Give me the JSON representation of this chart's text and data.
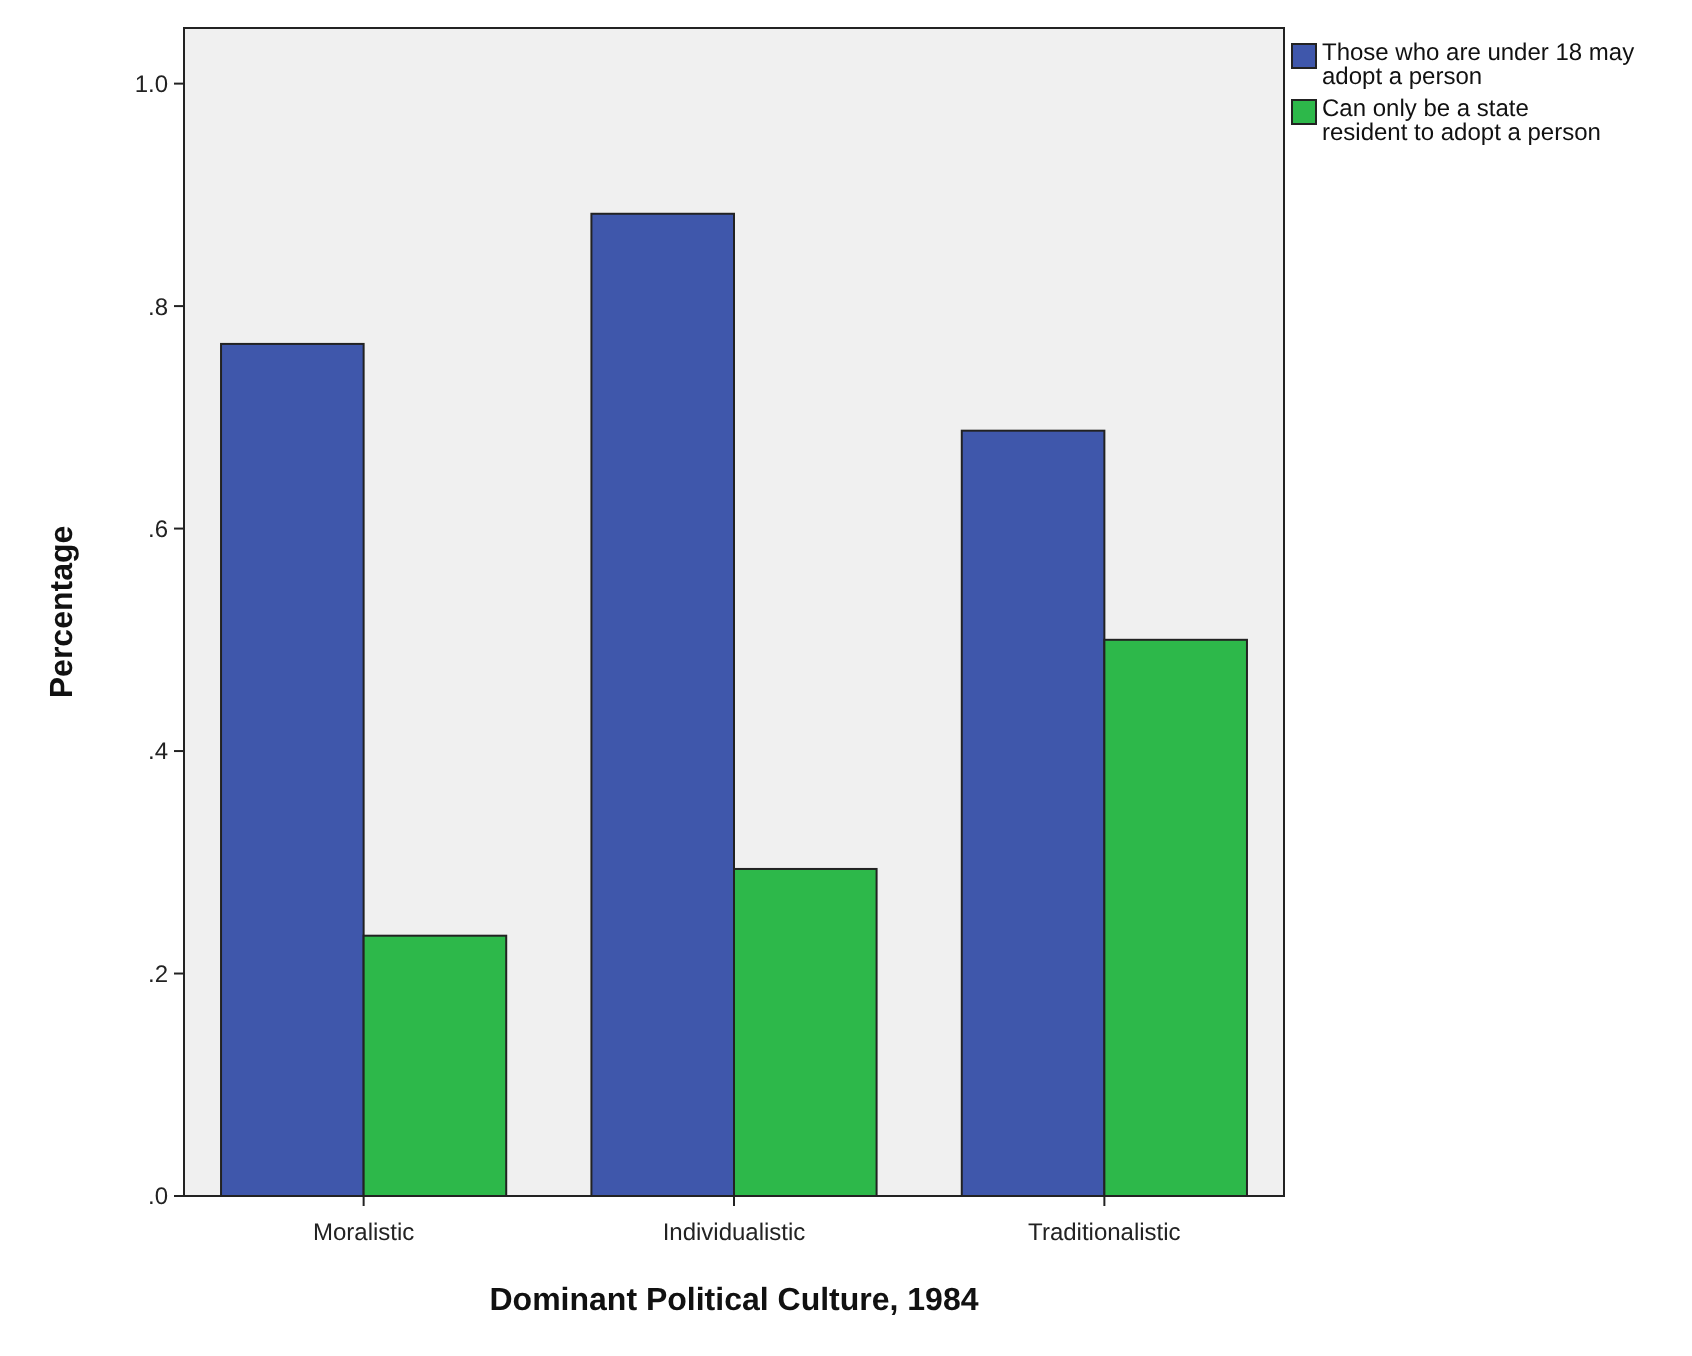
{
  "chart_data": {
    "type": "bar",
    "xlabel": "Dominant Political Culture, 1984",
    "ylabel": "Percentage",
    "categories": [
      "Moralistic",
      "Individualistic",
      "Traditionalistic"
    ],
    "series": [
      {
        "name": "Those who are under 18 may adopt a person",
        "color": "#3f57ab",
        "values": [
          0.766,
          0.883,
          0.688
        ]
      },
      {
        "name": "Can only be a state resident to adopt a person",
        "color": "#2db84a",
        "values": [
          0.234,
          0.294,
          0.5
        ]
      }
    ],
    "ylim": [
      0,
      1.05
    ],
    "yticks": [
      {
        "value": 0,
        "label": ".0"
      },
      {
        "value": 0.2,
        "label": ".2"
      },
      {
        "value": 0.4,
        "label": ".4"
      },
      {
        "value": 0.6,
        "label": ".6"
      },
      {
        "value": 0.8,
        "label": ".8"
      },
      {
        "value": 1,
        "label": "1.0"
      }
    ],
    "grid": false,
    "legend": "right"
  }
}
